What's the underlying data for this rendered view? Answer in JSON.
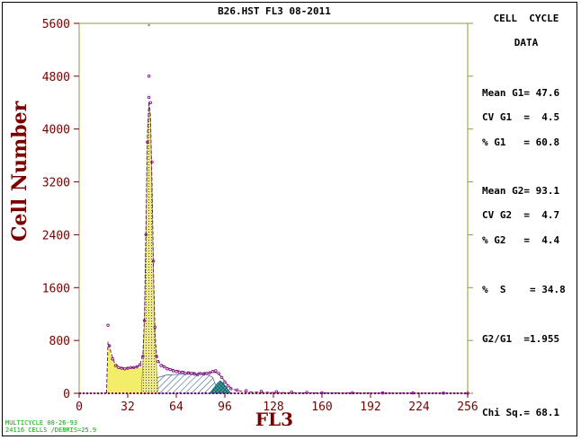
{
  "chart_data": {
    "type": "area",
    "title": "B26.HST FL3 08-2011",
    "xlabel": "FL3",
    "ylabel": "Cell Number",
    "xlim": [
      0,
      256
    ],
    "ylim": [
      0,
      5600
    ],
    "x_ticks": [
      "0",
      "32",
      "64",
      "96",
      "128",
      "160",
      "192",
      "224",
      "256"
    ],
    "y_ticks": [
      "0",
      "800",
      "1600",
      "2400",
      "3200",
      "4000",
      "4800",
      "5600"
    ],
    "y_tick_values": [
      0,
      800,
      1600,
      2400,
      3200,
      4000,
      4800,
      5600
    ],
    "colors": {
      "axis": "#7a0000",
      "frame_green": "#8c9a3a",
      "debris_fill": "#f2ee6a",
      "g1_fill": "#eeea88",
      "s_phase_hatch": "#1a4a80",
      "g2_fill": "#3aa0a0",
      "data_points": "#800080",
      "fit_line": "#6b2b5a",
      "label_dark_red": "#7a0000"
    },
    "data_points": [
      [
        19,
        1030
      ],
      [
        20,
        720
      ],
      [
        22,
        520
      ],
      [
        24,
        420
      ],
      [
        26,
        390
      ],
      [
        28,
        380
      ],
      [
        30,
        370
      ],
      [
        32,
        380
      ],
      [
        34,
        390
      ],
      [
        36,
        390
      ],
      [
        38,
        400
      ],
      [
        40,
        430
      ],
      [
        42,
        560
      ],
      [
        43,
        1100
      ],
      [
        44,
        2400
      ],
      [
        45,
        3800
      ],
      [
        46,
        4480
      ],
      [
        47,
        4400
      ],
      [
        48,
        3500
      ],
      [
        49,
        2000
      ],
      [
        50,
        1000
      ],
      [
        51,
        560
      ],
      [
        52,
        480
      ],
      [
        54,
        420
      ],
      [
        56,
        400
      ],
      [
        58,
        370
      ],
      [
        60,
        360
      ],
      [
        62,
        340
      ],
      [
        64,
        330
      ],
      [
        66,
        320
      ],
      [
        68,
        320
      ],
      [
        70,
        300
      ],
      [
        72,
        310
      ],
      [
        74,
        300
      ],
      [
        76,
        290
      ],
      [
        78,
        280
      ],
      [
        80,
        300
      ],
      [
        82,
        290
      ],
      [
        84,
        300
      ],
      [
        86,
        310
      ],
      [
        88,
        330
      ],
      [
        90,
        340
      ],
      [
        92,
        300
      ],
      [
        94,
        240
      ],
      [
        96,
        170
      ],
      [
        98,
        110
      ],
      [
        100,
        70
      ],
      [
        104,
        50
      ],
      [
        110,
        40
      ],
      [
        120,
        30
      ],
      [
        130,
        25
      ],
      [
        140,
        20
      ],
      [
        150,
        15
      ],
      [
        160,
        10
      ],
      [
        180,
        8
      ],
      [
        200,
        5
      ],
      [
        220,
        5
      ],
      [
        240,
        3
      ],
      [
        256,
        0
      ]
    ],
    "outlier_point": [
      46,
      4800
    ],
    "top_point": [
      46,
      5600
    ],
    "fit_line": [
      [
        18,
        0
      ],
      [
        19,
        780
      ],
      [
        21,
        620
      ],
      [
        23,
        480
      ],
      [
        26,
        400
      ],
      [
        30,
        380
      ],
      [
        36,
        390
      ],
      [
        40,
        420
      ],
      [
        42,
        600
      ],
      [
        43,
        1150
      ],
      [
        44,
        2500
      ],
      [
        45,
        3900
      ],
      [
        46,
        4420
      ],
      [
        47,
        4200
      ],
      [
        48,
        3200
      ],
      [
        49,
        1800
      ],
      [
        50,
        900
      ],
      [
        51,
        560
      ],
      [
        53,
        460
      ],
      [
        56,
        410
      ],
      [
        60,
        370
      ],
      [
        66,
        340
      ],
      [
        72,
        320
      ],
      [
        78,
        310
      ],
      [
        84,
        315
      ],
      [
        88,
        320
      ],
      [
        91,
        310
      ],
      [
        94,
        240
      ],
      [
        97,
        150
      ],
      [
        100,
        80
      ],
      [
        104,
        40
      ],
      [
        112,
        20
      ],
      [
        140,
        8
      ],
      [
        256,
        0
      ]
    ],
    "debris_area": [
      [
        18,
        0
      ],
      [
        19,
        760
      ],
      [
        21,
        600
      ],
      [
        23,
        460
      ],
      [
        26,
        390
      ],
      [
        30,
        370
      ],
      [
        35,
        370
      ],
      [
        39,
        380
      ],
      [
        41,
        400
      ],
      [
        43,
        400
      ],
      [
        43,
        0
      ]
    ],
    "g1_area": [
      [
        41,
        0
      ],
      [
        42,
        500
      ],
      [
        43,
        1100
      ],
      [
        44,
        2400
      ],
      [
        45,
        3800
      ],
      [
        46,
        4380
      ],
      [
        47,
        4100
      ],
      [
        48,
        3100
      ],
      [
        49,
        1700
      ],
      [
        50,
        820
      ],
      [
        51,
        400
      ],
      [
        52,
        0
      ]
    ],
    "s_phase_area": [
      [
        44,
        0
      ],
      [
        48,
        120
      ],
      [
        52,
        240
      ],
      [
        58,
        280
      ],
      [
        70,
        290
      ],
      [
        84,
        290
      ],
      [
        88,
        240
      ],
      [
        90,
        120
      ],
      [
        92,
        0
      ]
    ],
    "g2_area": [
      [
        86,
        0
      ],
      [
        88,
        60
      ],
      [
        91,
        150
      ],
      [
        93,
        190
      ],
      [
        95,
        150
      ],
      [
        98,
        60
      ],
      [
        100,
        0
      ]
    ],
    "stats_panel": {
      "title_line1": "CELL  CYCLE",
      "title_line2": "DATA",
      "mean_g1": "Mean G1= 47.6",
      "cv_g1": "CV G1  =  4.5",
      "pct_g1": "% G1   = 60.8",
      "mean_g2": "Mean G2= 93.1",
      "cv_g2": "CV G2  =  4.7",
      "pct_g2": "% G2   =  4.4",
      "pct_s": "%  S    = 34.8",
      "g2_g1": "G2/G1  =1.955",
      "chi_sq": "Chi Sq.= 68.1"
    },
    "footer": {
      "line1": "MULTICYCLE 08-26-93",
      "line2": "24116 CELLS /DEBRIS=25.9"
    }
  }
}
